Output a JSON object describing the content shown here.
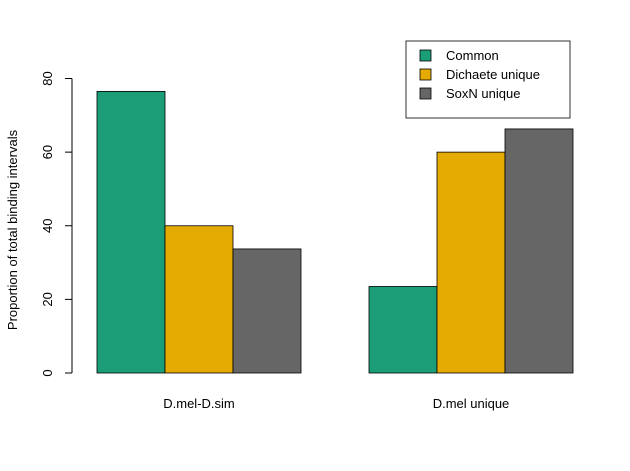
{
  "chart_data": {
    "type": "bar",
    "layout": "grouped",
    "title": "",
    "xlabel": "",
    "ylabel": "Proportion of total binding intervals",
    "ylim": [
      0,
      80
    ],
    "yticks": [
      0,
      20,
      40,
      60,
      80
    ],
    "categories": [
      "D.mel-D.sim",
      "D.mel unique"
    ],
    "series": [
      {
        "name": "Common",
        "color": "#1b9e77",
        "values": [
          76.5,
          23.5
        ]
      },
      {
        "name": "Dichaete unique",
        "color": "#e6ab02",
        "values": [
          40.0,
          60.0
        ]
      },
      {
        "name": "SoxN unique",
        "color": "#666666",
        "values": [
          33.7,
          66.3
        ]
      }
    ],
    "legend_position": "top-right",
    "grid": false
  }
}
